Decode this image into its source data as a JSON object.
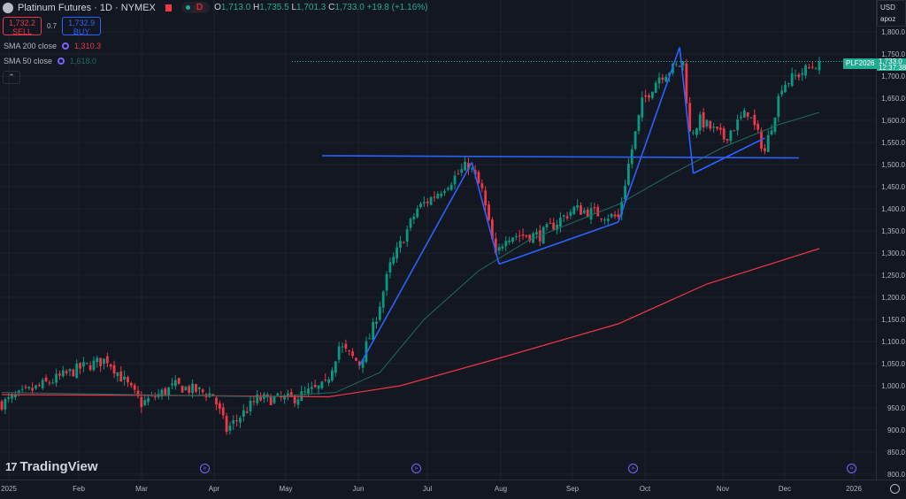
{
  "header": {
    "title": "Platinum Futures · 1D · NYMEX",
    "interval_badge": "D",
    "ohlc": {
      "o_label": "O",
      "o": "1,713.0",
      "h_label": "H",
      "h": "1,735.5",
      "l_label": "L",
      "l": "1,701.3",
      "c_label": "C",
      "c": "1,733.0",
      "change": "+19.8 (+1.16%)"
    }
  },
  "trade": {
    "sell_price": "1,732.2",
    "sell_label": "SELL",
    "spread": "0.7",
    "buy_price": "1,732.9",
    "buy_label": "BUY"
  },
  "indicators": [
    {
      "label": "SMA 200 close",
      "value": "1,310.3",
      "color": "#f23645"
    },
    {
      "label": "SMA 50 close",
      "value": "1,618.0",
      "color": "#1e6b5e"
    }
  ],
  "collapse_icon": "chevron-up-icon",
  "price_axis": {
    "currency": "USD",
    "unit": "apoz",
    "labels": [
      "1,800.0",
      "1,750.0",
      "1,700.0",
      "1,650.0",
      "1,600.0",
      "1,550.0",
      "1,500.0",
      "1,450.0",
      "1,400.0",
      "1,350.0",
      "1,300.0",
      "1,250.0",
      "1,200.0",
      "1,150.0",
      "1,100.0",
      "1,050.0",
      "1,000.0",
      "950.0",
      "900.0",
      "850.0",
      "800.0"
    ],
    "symbol_tag": "PLF2026",
    "last_price": "1,733.0",
    "countdown": "12:37:38"
  },
  "time_axis": {
    "labels": [
      "2025",
      "Feb",
      "Mar",
      "Apr",
      "May",
      "Jun",
      "Jul",
      "Aug",
      "Sep",
      "Oct",
      "Nov",
      "Dec",
      "2026"
    ]
  },
  "brand": "TradingView",
  "colors": {
    "up": "#089981",
    "down": "#f23645",
    "drawing": "#2962ff",
    "sma200": "#f23645",
    "sma50": "#1e6b5e",
    "bg": "#131722"
  },
  "chart_data": {
    "type": "candlestick",
    "ylim": [
      800,
      1800
    ],
    "candle_count": 241,
    "close_anchors": [
      [
        0,
        960
      ],
      [
        23,
        1040
      ],
      [
        31,
        1060
      ],
      [
        41,
        960
      ],
      [
        51,
        1000
      ],
      [
        62,
        980
      ],
      [
        66,
        900
      ],
      [
        75,
        970
      ],
      [
        85,
        970
      ],
      [
        95,
        1000
      ],
      [
        99,
        1090
      ],
      [
        105,
        1050
      ],
      [
        109,
        1130
      ],
      [
        114,
        1270
      ],
      [
        122,
        1400
      ],
      [
        127,
        1430
      ],
      [
        137,
        1500
      ],
      [
        141,
        1440
      ],
      [
        145,
        1290
      ],
      [
        148,
        1340
      ],
      [
        158,
        1340
      ],
      [
        168,
        1400
      ],
      [
        181,
        1380
      ],
      [
        184,
        1500
      ],
      [
        188,
        1640
      ],
      [
        193,
        1700
      ],
      [
        200,
        1730
      ],
      [
        202,
        1570
      ],
      [
        205,
        1600
      ],
      [
        212,
        1560
      ],
      [
        219,
        1620
      ],
      [
        224,
        1530
      ],
      [
        229,
        1680
      ],
      [
        240,
        1733
      ]
    ],
    "sma200": [
      [
        0,
        980
      ],
      [
        52,
        978
      ],
      [
        96,
        975
      ],
      [
        117,
        1000
      ],
      [
        145,
        1060
      ],
      [
        181,
        1140
      ],
      [
        207,
        1230
      ],
      [
        240,
        1310
      ]
    ],
    "sma50": [
      [
        0,
        985
      ],
      [
        78,
        975
      ],
      [
        98,
        985
      ],
      [
        111,
        1030
      ],
      [
        124,
        1150
      ],
      [
        140,
        1260
      ],
      [
        155,
        1330
      ],
      [
        181,
        1410
      ],
      [
        197,
        1480
      ],
      [
        212,
        1540
      ],
      [
        228,
        1590
      ],
      [
        240,
        1618
      ]
    ],
    "drawings": [
      [
        [
          94,
          1520
        ],
        [
          234,
          1515
        ]
      ],
      [
        [
          105,
          1045
        ],
        [
          138,
          1505
        ]
      ],
      [
        [
          138,
          1505
        ],
        [
          146,
          1275
        ]
      ],
      [
        [
          146,
          1275
        ],
        [
          181,
          1370
        ]
      ],
      [
        [
          181,
          1370
        ],
        [
          199,
          1765
        ]
      ],
      [
        [
          199,
          1765
        ],
        [
          203,
          1480
        ]
      ],
      [
        [
          203,
          1480
        ],
        [
          224,
          1560
        ]
      ]
    ]
  }
}
